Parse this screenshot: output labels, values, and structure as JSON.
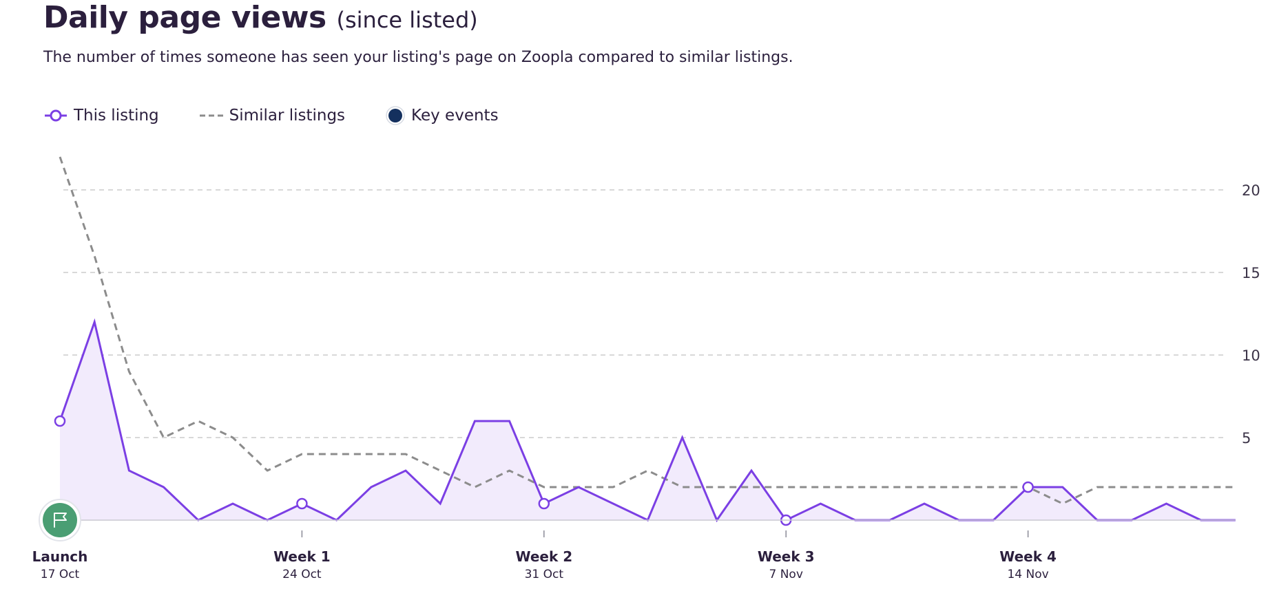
{
  "header": {
    "title": "Daily page views",
    "title_suffix": "(since listed)",
    "description": "The number of times someone has seen your listing's page on Zoopla compared to similar listings."
  },
  "legend": [
    {
      "label": "This listing",
      "icon": "purple-line-circle-icon"
    },
    {
      "label": "Similar listings",
      "icon": "grey-dashed-line-icon"
    },
    {
      "label": "Key events",
      "icon": "navy-dot-icon"
    }
  ],
  "colors": {
    "this_listing": "#7b3fe4",
    "this_listing_fill": "#f2ebfc",
    "similar_listings": "#8c8c8c",
    "key_events": "#14305e",
    "launch_marker": "#4a9e73",
    "grid": "#cccccc"
  },
  "chart_data": {
    "type": "line",
    "x_axis": {
      "labels": [
        {
          "index": 0,
          "main": "Launch",
          "sub": "17 Oct"
        },
        {
          "index": 7,
          "main": "Week 1",
          "sub": "24 Oct"
        },
        {
          "index": 14,
          "main": "Week 2",
          "sub": "31 Oct"
        },
        {
          "index": 21,
          "main": "Week 3",
          "sub": "7 Nov"
        },
        {
          "index": 28,
          "main": "Week 4",
          "sub": "14 Nov"
        }
      ]
    },
    "y_axis": {
      "position": "right",
      "ticks": [
        5,
        10,
        15,
        20
      ],
      "range": [
        0,
        22
      ]
    },
    "grid": true,
    "legend_position": "top-left",
    "series": [
      {
        "name": "This listing",
        "style": "solid-area",
        "values": [
          6,
          12,
          3,
          2,
          0,
          1,
          0,
          1,
          0,
          2,
          3,
          1,
          6,
          6,
          1,
          2,
          1,
          0,
          5,
          0,
          3,
          0,
          1,
          0,
          0,
          1,
          0,
          0,
          2,
          2,
          0,
          0,
          1,
          0,
          0
        ],
        "markers": [
          0,
          7,
          14,
          21,
          28
        ]
      },
      {
        "name": "Similar listings",
        "style": "dashed",
        "values": [
          22,
          16,
          9,
          5,
          6,
          5,
          3,
          4,
          4,
          4,
          4,
          3,
          2,
          3,
          2,
          2,
          2,
          3,
          2,
          2,
          2,
          2,
          2,
          2,
          2,
          2,
          2,
          2,
          2,
          1,
          2,
          2,
          2,
          2,
          2
        ]
      }
    ],
    "events": [
      {
        "index": 0,
        "icon": "flag-icon",
        "label": "Launch"
      }
    ]
  }
}
